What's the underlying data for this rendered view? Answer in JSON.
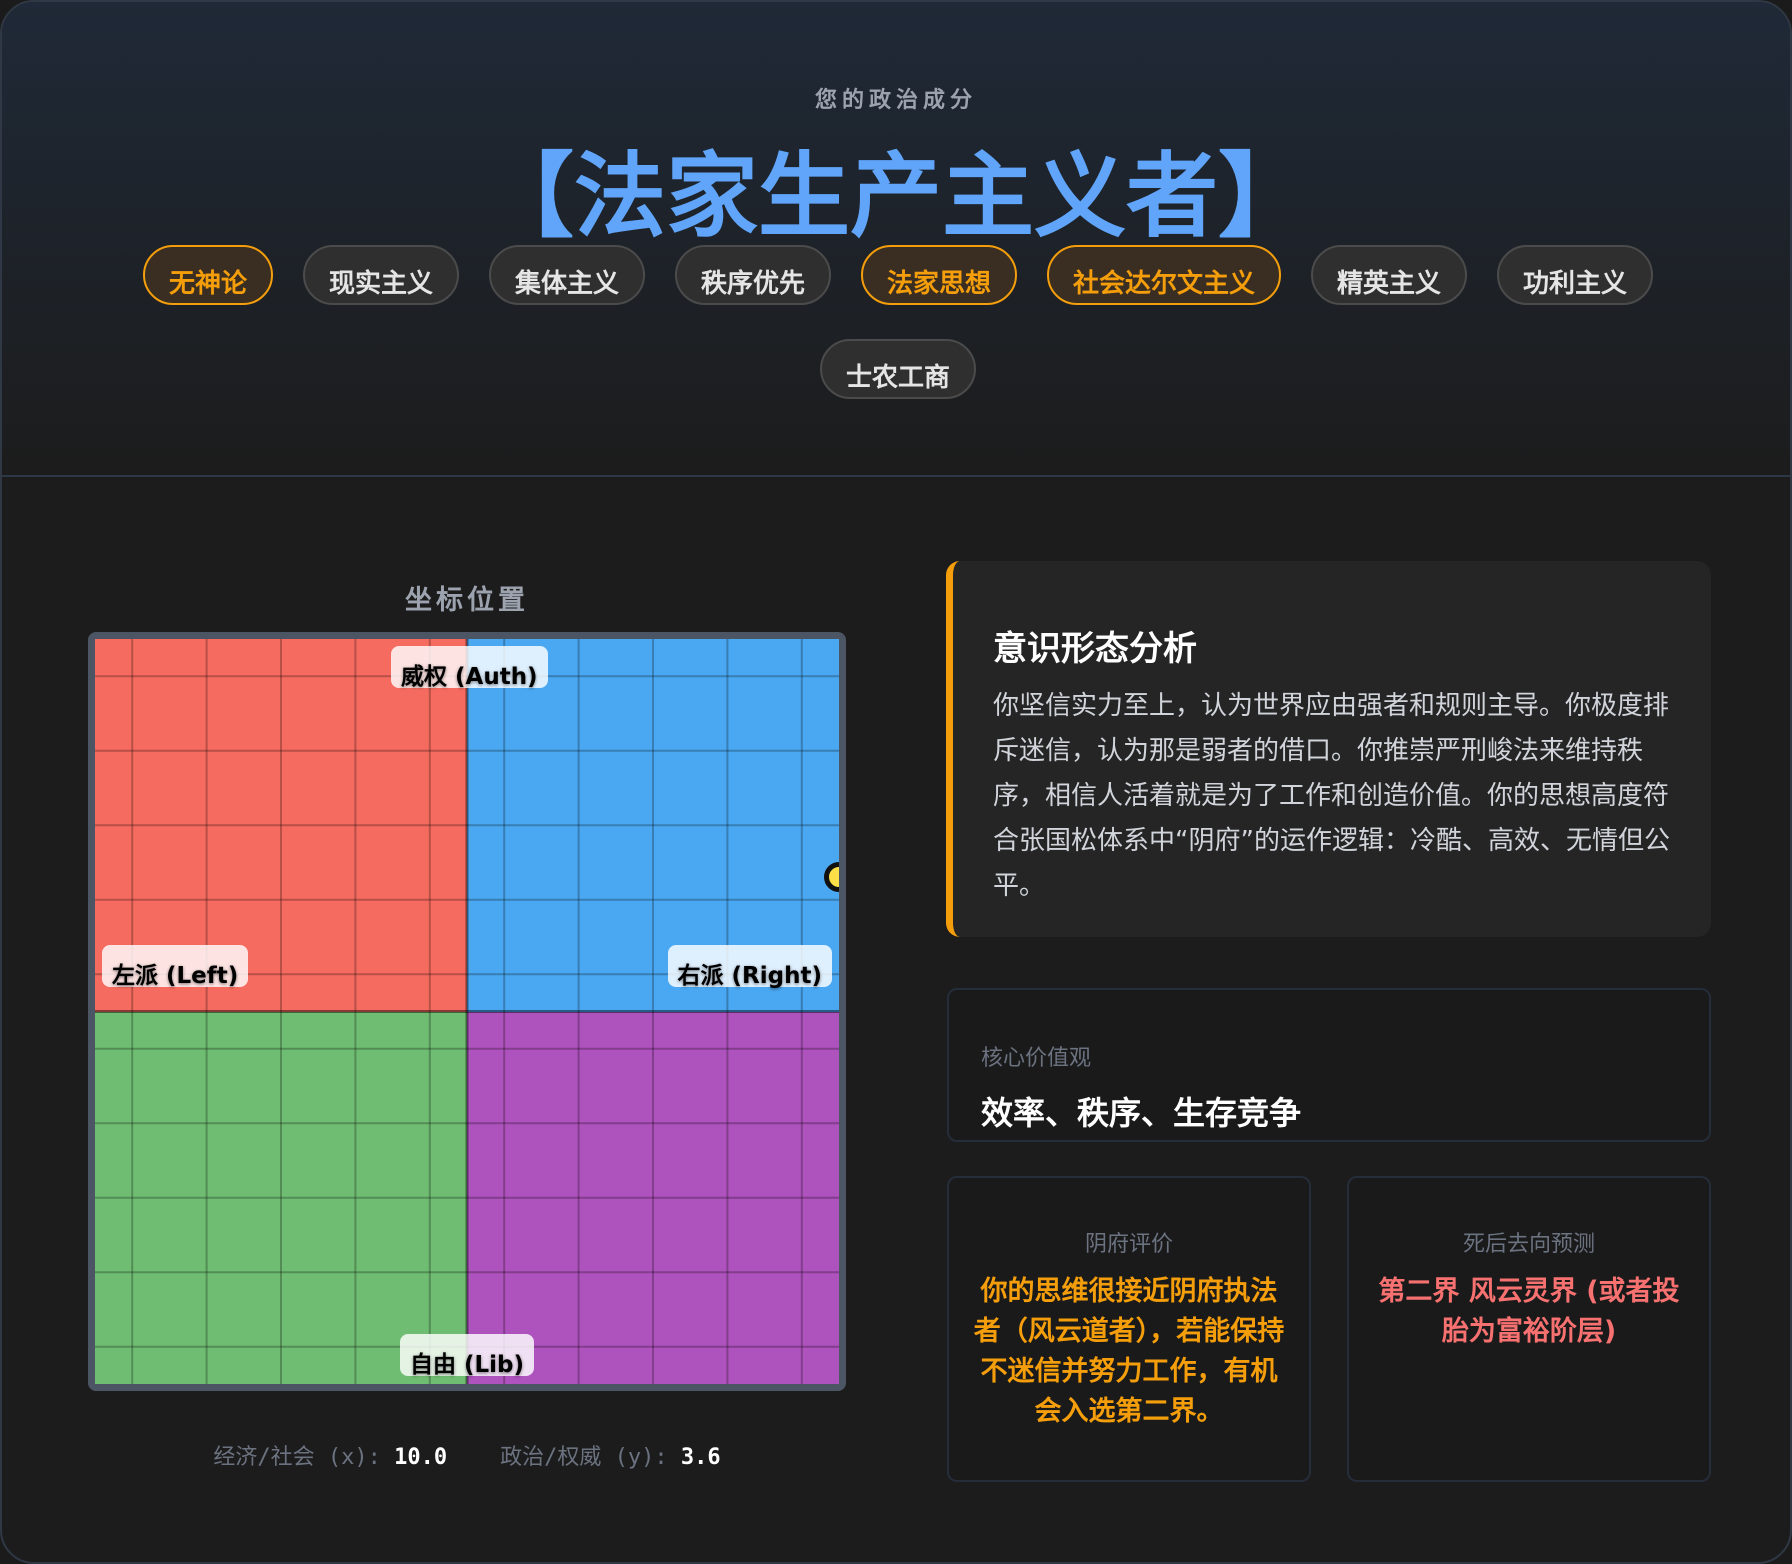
{
  "header": {
    "subtitle": "您的政治成分",
    "title": "【法家生产主义者】",
    "tags": [
      {
        "label": "无神论",
        "highlighted": true
      },
      {
        "label": "现实主义",
        "highlighted": false
      },
      {
        "label": "集体主义",
        "highlighted": false
      },
      {
        "label": "秩序优先",
        "highlighted": false
      },
      {
        "label": "法家思想",
        "highlighted": true
      },
      {
        "label": "社会达尔文主义",
        "highlighted": true
      },
      {
        "label": "精英主义",
        "highlighted": false
      },
      {
        "label": "功利主义",
        "highlighted": false
      },
      {
        "label": "士农工商",
        "highlighted": false
      }
    ]
  },
  "compass": {
    "title": "坐标位置",
    "labels": {
      "top": "威权 (Auth)",
      "left": "左派 (Left)",
      "right": "右派 (Right)",
      "bottom": "自由 (Lib)"
    },
    "quadrant_colors": {
      "auth_left": "#f56b5f",
      "auth_right": "#4aa8f2",
      "lib_left": "#6fbd72",
      "lib_right": "#ae52bd"
    },
    "point": {
      "x": 10.0,
      "y": 3.6
    },
    "range": [
      -10,
      10
    ],
    "x_label": "经济/社会 (x):",
    "x_value": "10.0",
    "y_label": "政治/权威 (y):",
    "y_value": "3.6"
  },
  "analysis": {
    "title": "意识形态分析",
    "body": "你坚信实力至上，认为世界应由强者和规则主导。你极度排斥迷信，认为那是弱者的借口。你推崇严刑峻法来维持秩序，相信人活着就是为了工作和创造价值。你的思想高度符合张国松体系中“阴府”的运作逻辑：冷酷、高效、无情但公平。"
  },
  "core_values": {
    "label": "核心价值观",
    "value": "效率、秩序、生存竞争"
  },
  "yinfu": {
    "label": "阴府评价",
    "value": "你的思维很接近阴府执法者（风云道者），若能保持不迷信并努力工作，有机会入选第二界。",
    "color": "#f59e0b"
  },
  "afterlife": {
    "label": "死后去向预测",
    "value": "第二界 风云灵界 (或者投胎为富裕阶层)",
    "color": "#f87171"
  }
}
